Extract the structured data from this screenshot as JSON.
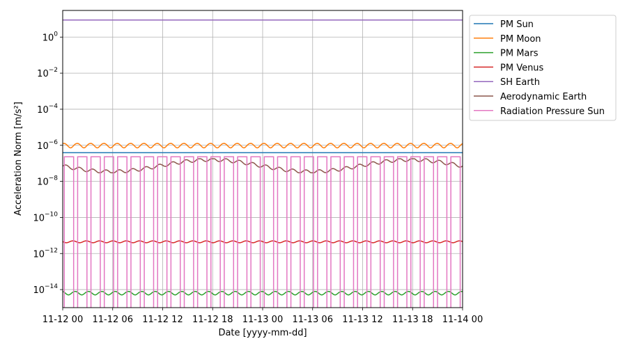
{
  "chart_data": {
    "type": "line",
    "xlabel": "Date [yyyy-mm-dd]",
    "ylabel": "Acceleration Norm [m/s²]",
    "yscale": "log",
    "ylim": [
      1e-15,
      30.0
    ],
    "xlim": [
      "2023-11-12 00:00",
      "2023-11-14 00:00"
    ],
    "grid": true,
    "legend_position": "outside-top-right",
    "x_tick_labels": [
      "11-12 00",
      "11-12 06",
      "11-12 12",
      "11-12 18",
      "11-13 00",
      "11-13 06",
      "11-13 12",
      "11-13 18",
      "11-14 00"
    ],
    "y_ticks": [
      {
        "value": 1e-14,
        "base": "10",
        "exp": "−14"
      },
      {
        "value": 1e-12,
        "base": "10",
        "exp": "−12"
      },
      {
        "value": 1e-10,
        "base": "10",
        "exp": "−10"
      },
      {
        "value": 1e-08,
        "base": "10",
        "exp": "−8"
      },
      {
        "value": 1e-06,
        "base": "10",
        "exp": "−6"
      },
      {
        "value": 0.0001,
        "base": "10",
        "exp": "−4"
      },
      {
        "value": 0.01,
        "base": "10",
        "exp": "−2"
      },
      {
        "value": 1,
        "base": "10",
        "exp": "0"
      }
    ],
    "series": [
      {
        "name": "PM Sun",
        "color": "#1f77b4",
        "kind": "constant",
        "value": 3.9e-07
      },
      {
        "name": "PM Moon",
        "color": "#ff7f0e",
        "kind": "oscillating",
        "mean": 1e-06,
        "rel_amplitude": 0.28,
        "cycles": 30
      },
      {
        "name": "PM Mars",
        "color": "#2ca02c",
        "kind": "oscillating",
        "mean": 6.5e-15,
        "rel_amplitude": 0.22,
        "cycles": 30
      },
      {
        "name": "PM Venus",
        "color": "#d62728",
        "kind": "oscillating",
        "mean": 4.5e-12,
        "rel_amplitude": 0.12,
        "cycles": 30
      },
      {
        "name": "SH Earth",
        "color": "#9467bd",
        "kind": "constant",
        "value": 8.8
      },
      {
        "name": "Aerodynamic Earth",
        "color": "#8c564b",
        "kind": "modulated",
        "min": 3e-08,
        "max": 1.8e-07,
        "cycles": 30
      },
      {
        "name": "Radiation Pressure Sun",
        "color": "#e377c2",
        "kind": "eclipse",
        "value": 2.3e-07,
        "periods": 30,
        "eclipse_fraction": 0.3
      }
    ]
  }
}
